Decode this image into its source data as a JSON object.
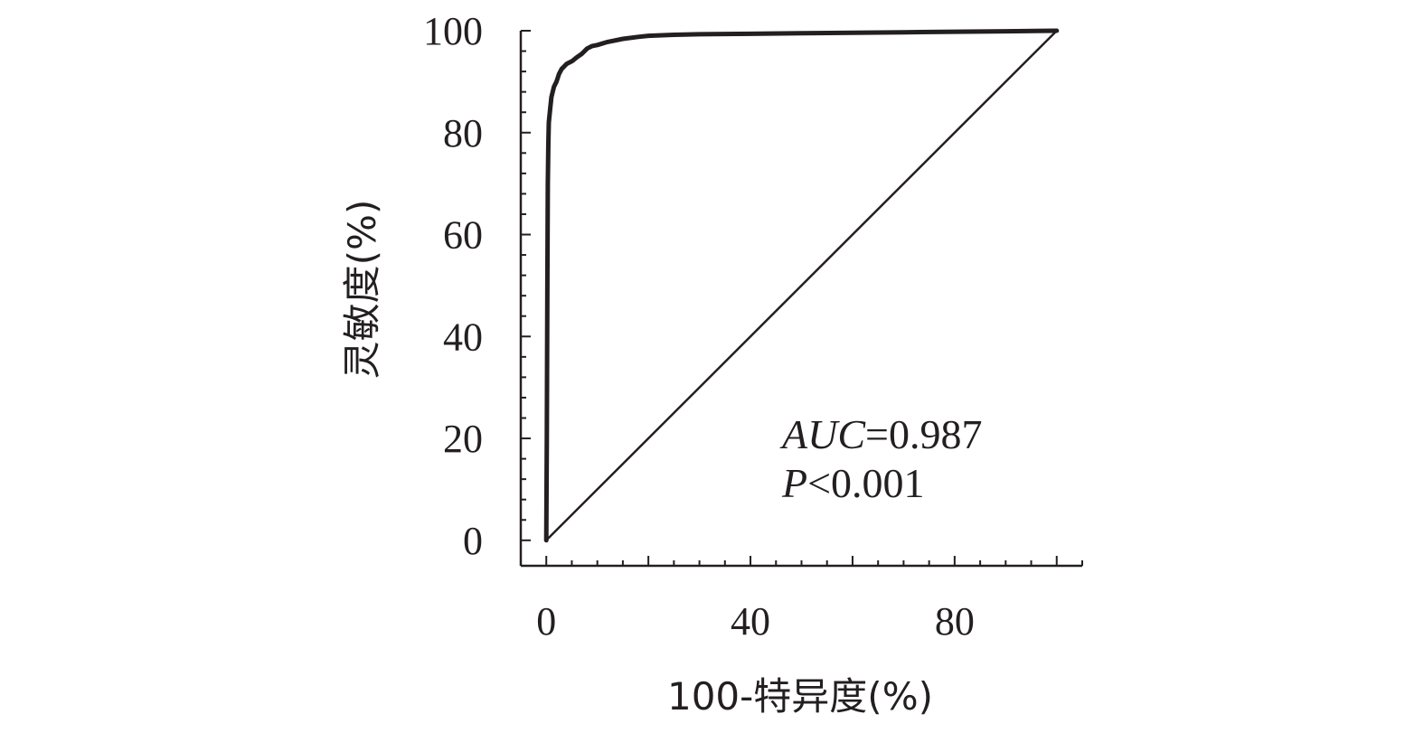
{
  "chart_data": {
    "type": "line",
    "title": "",
    "xlabel": "100-特异度(%)",
    "ylabel": "灵敏度(%)",
    "xlim": [
      -5,
      105
    ],
    "ylim": [
      -5,
      100
    ],
    "xticks": [
      0,
      40,
      80
    ],
    "yticks": [
      0,
      20,
      40,
      60,
      80,
      100
    ],
    "grid": false,
    "legend": "none",
    "series": [
      {
        "name": "",
        "style": "thick",
        "x": [
          0,
          0.1,
          0.2,
          0.3,
          0.4,
          0.5,
          0.8,
          1.0,
          1.5,
          2.0,
          2.5,
          3.0,
          3.5,
          4.0,
          5.0,
          6.0,
          7.0,
          8.0,
          9.0,
          10.0,
          12.0,
          15.0,
          18.0,
          20.0,
          25.0,
          30.0,
          40.0,
          50.0,
          60.0,
          70.0,
          80.0,
          90.0,
          100.0
        ],
        "y": [
          0,
          20,
          50,
          70,
          78,
          82,
          85,
          87,
          89,
          90,
          91.5,
          92.5,
          93,
          93.5,
          94,
          94.8,
          95.5,
          96.5,
          97,
          97.2,
          97.8,
          98.4,
          98.8,
          99.0,
          99.2,
          99.3,
          99.4,
          99.5,
          99.6,
          99.7,
          99.8,
          99.9,
          100
        ]
      },
      {
        "name": "",
        "style": "reference",
        "x": [
          0,
          100
        ],
        "y": [
          0,
          100
        ]
      }
    ],
    "annotations": [
      {
        "italic": "AUC",
        "text": "=0.987"
      },
      {
        "italic": "P",
        "text": "<0.001"
      }
    ]
  }
}
